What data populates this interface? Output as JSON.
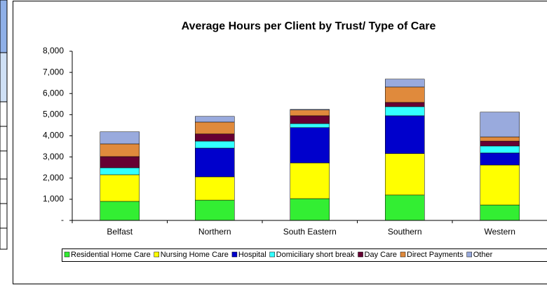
{
  "chart_data": {
    "type": "stacked_bar",
    "title": "Average Hours per Client by Trust/ Type of Care",
    "categories": [
      "Belfast",
      "Northern",
      "South Eastern",
      "Southern",
      "Western"
    ],
    "series": [
      {
        "name": "Residential Home Care",
        "color": "#33ee33",
        "values": [
          900,
          960,
          1030,
          1200,
          730
        ]
      },
      {
        "name": "Nursing Home Care",
        "color": "#ffff00",
        "values": [
          1260,
          1100,
          1690,
          1960,
          1890
        ]
      },
      {
        "name": "Hospital",
        "color": "#0000cc",
        "values": [
          0,
          1360,
          1670,
          1790,
          570
        ]
      },
      {
        "name": "Domiciliary short break",
        "color": "#33ffff",
        "values": [
          330,
          330,
          190,
          430,
          330
        ]
      },
      {
        "name": "Day Care",
        "color": "#660033",
        "values": [
          530,
          340,
          370,
          200,
          230
        ]
      },
      {
        "name": "Direct Payments",
        "color": "#e08a3c",
        "values": [
          600,
          560,
          270,
          730,
          200
        ]
      },
      {
        "name": "Other",
        "color": "#99aadd",
        "values": [
          570,
          270,
          30,
          370,
          1170
        ]
      }
    ],
    "ylim": [
      0,
      8000
    ],
    "yticks": [
      {
        "value": 0,
        "label": "-"
      },
      {
        "value": 1000,
        "label": "1,000"
      },
      {
        "value": 2000,
        "label": "2,000"
      },
      {
        "value": 3000,
        "label": "3,000"
      },
      {
        "value": 4000,
        "label": "4,000"
      },
      {
        "value": 5000,
        "label": "5,000"
      },
      {
        "value": 6000,
        "label": "6,000"
      },
      {
        "value": 7000,
        "label": "7,000"
      },
      {
        "value": 8000,
        "label": "8,000"
      }
    ],
    "grid": false,
    "legend": "bottom"
  }
}
